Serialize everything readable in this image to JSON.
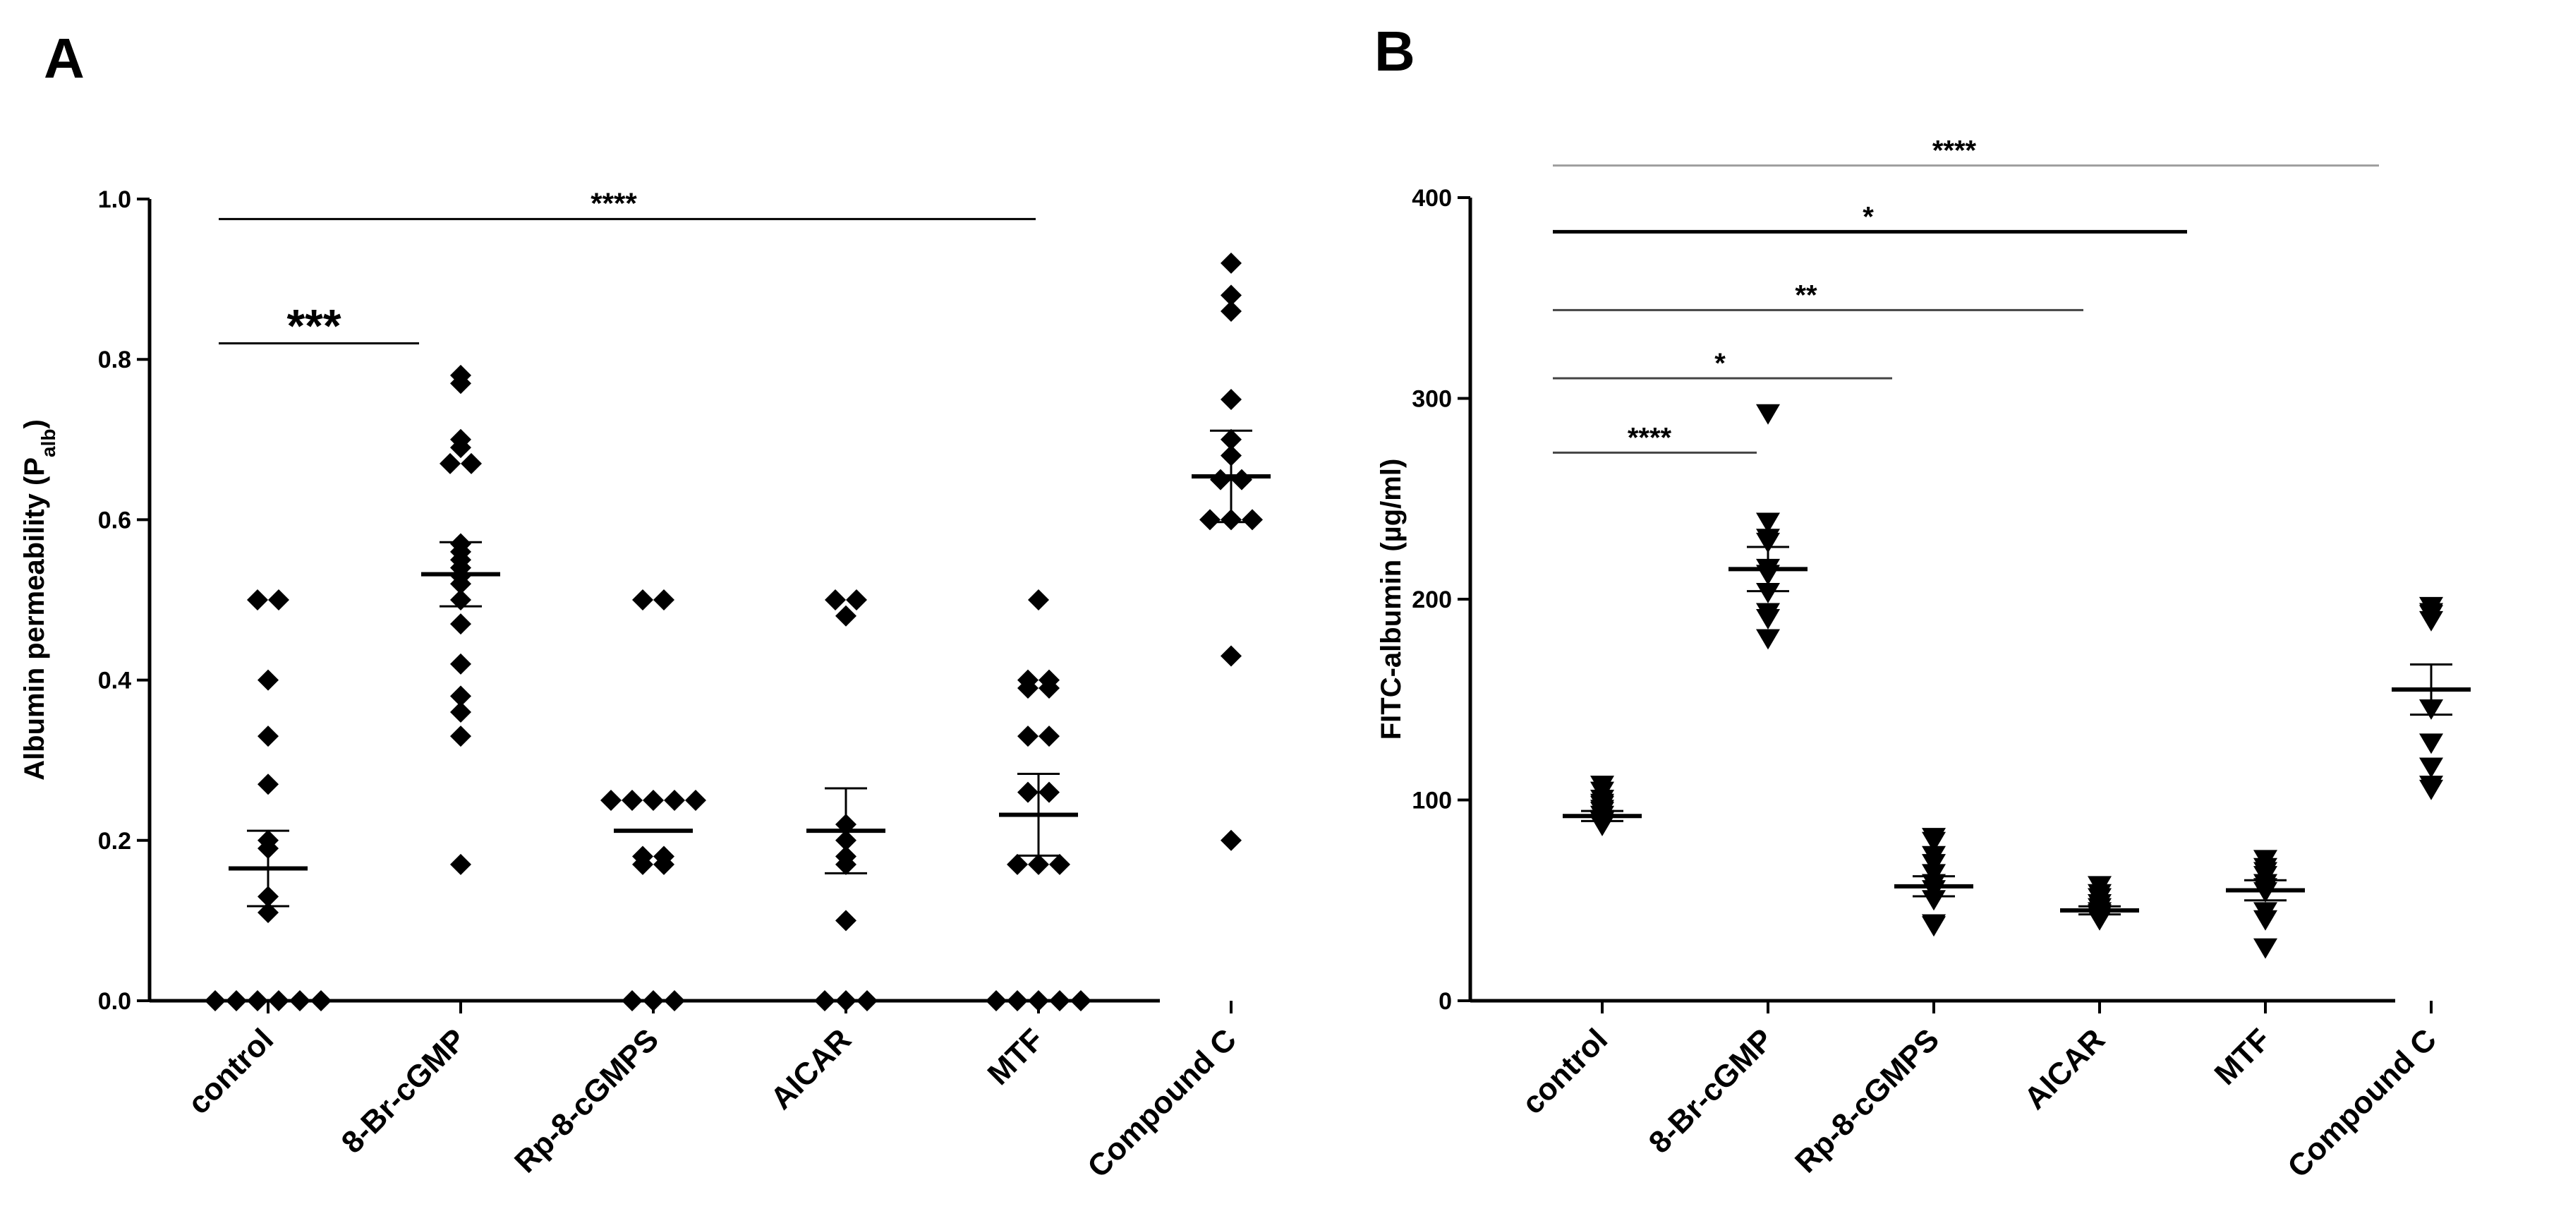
{
  "chart_data": [
    {
      "panel": "A",
      "type": "scatter",
      "ylabel": "Albumin permeability (P",
      "ylabel_sub": "alb",
      "ylabel_close": ")",
      "xlabel": "",
      "ylim": [
        0,
        1.0
      ],
      "yticks": [
        0.0,
        0.2,
        0.4,
        0.6,
        0.8,
        1.0
      ],
      "ytick_labels": [
        "0.0",
        "0.2",
        "0.4",
        "0.6",
        "0.8",
        "1.0"
      ],
      "categories": [
        "control",
        "8-Br-cGMP",
        "Rp-8-cGMPS",
        "AICAR",
        "MTF",
        "Compound C"
      ],
      "marker": "diamond",
      "series": [
        {
          "name": "control",
          "mean": 0.165,
          "sem": 0.047,
          "points": [
            0.5,
            0.5,
            0.4,
            0.33,
            0.27,
            0.2,
            0.19,
            0.13,
            0.11,
            0.0,
            0.0,
            0.0,
            0.0,
            0.0,
            0.0
          ]
        },
        {
          "name": "8-Br-cGMP",
          "mean": 0.532,
          "sem": 0.04,
          "points": [
            0.78,
            0.77,
            0.7,
            0.69,
            0.67,
            0.67,
            0.57,
            0.56,
            0.55,
            0.54,
            0.53,
            0.52,
            0.5,
            0.47,
            0.42,
            0.38,
            0.36,
            0.33,
            0.17
          ]
        },
        {
          "name": "Rp-8-cGMPS",
          "mean": 0.212,
          "sem": 0.0,
          "points": [
            0.5,
            0.5,
            0.25,
            0.25,
            0.25,
            0.25,
            0.25,
            0.18,
            0.18,
            0.17,
            0.17,
            0.0,
            0.0,
            0.0
          ]
        },
        {
          "name": "AICAR",
          "mean": 0.212,
          "sem": 0.053,
          "points": [
            0.5,
            0.5,
            0.48,
            0.22,
            0.2,
            0.18,
            0.17,
            0.1,
            0.0,
            0.0,
            0.0
          ]
        },
        {
          "name": "MTF",
          "mean": 0.232,
          "sem": 0.051,
          "points": [
            0.5,
            0.4,
            0.39,
            0.39,
            0.4,
            0.33,
            0.33,
            0.26,
            0.26,
            0.17,
            0.17,
            0.17,
            0.0,
            0.0,
            0.0,
            0.0,
            0.0
          ]
        },
        {
          "name": "Compound C",
          "mean": 0.654,
          "sem": 0.057,
          "points": [
            0.92,
            0.88,
            0.86,
            0.75,
            0.7,
            0.68,
            0.65,
            0.65,
            0.6,
            0.6,
            0.6,
            0.43,
            0.2
          ]
        }
      ],
      "significance": [
        {
          "label": "***",
          "from": 0,
          "to": 1,
          "y": 0.82
        },
        {
          "label": "****",
          "from": 0,
          "to": 5,
          "y": 0.975
        }
      ]
    },
    {
      "panel": "B",
      "type": "scatter",
      "ylabel": "FITC-albumin (µg/ml)",
      "xlabel": "",
      "ylim": [
        0,
        400
      ],
      "yticks": [
        0,
        100,
        200,
        300,
        400
      ],
      "ytick_labels": [
        "0",
        "100",
        "200",
        "300",
        "400"
      ],
      "categories": [
        "control",
        "8-Br-cGMP",
        "Rp-8-cGMPS",
        "AICAR",
        "MTF",
        "Compound C"
      ],
      "marker": "triangle-down",
      "series": [
        {
          "name": "control",
          "mean": 92,
          "sem": 2.5,
          "points": [
            107,
            104,
            100,
            98,
            97,
            95,
            94,
            92,
            90,
            89,
            88,
            87
          ]
        },
        {
          "name": "8-Br-cGMP",
          "mean": 215,
          "sem": 11,
          "points": [
            292,
            238,
            230,
            228,
            215,
            212,
            203,
            193,
            190,
            180
          ]
        },
        {
          "name": "Rp-8-cGMPS",
          "mean": 57,
          "sem": 5,
          "points": [
            81,
            79,
            72,
            68,
            63,
            58,
            55,
            50,
            38,
            37
          ]
        },
        {
          "name": "AICAR",
          "mean": 45,
          "sem": 2,
          "points": [
            57,
            53,
            51,
            48,
            46,
            44,
            43,
            42,
            40
          ]
        },
        {
          "name": "MTF",
          "mean": 55,
          "sem": 5,
          "points": [
            70,
            66,
            64,
            62,
            58,
            56,
            54,
            44,
            40,
            26
          ]
        },
        {
          "name": "Compound C",
          "mean": 155,
          "sem": 12.5,
          "points": [
            196,
            193,
            192,
            189,
            145,
            128,
            116,
            107,
            105
          ]
        }
      ],
      "significance": [
        {
          "label": "****",
          "from": 0,
          "to": 1,
          "y": 273
        },
        {
          "label": "*",
          "from": 0,
          "to": 2,
          "y": 310
        },
        {
          "label": "**",
          "from": 0,
          "to": 4,
          "y": 344
        },
        {
          "label": "*",
          "from": 0,
          "to": 5,
          "y": 383,
          "color": "#000000",
          "bold": true
        },
        {
          "label": "****",
          "from": 0,
          "to": 6,
          "y": 416,
          "color": "#a0a0a0"
        }
      ]
    }
  ]
}
